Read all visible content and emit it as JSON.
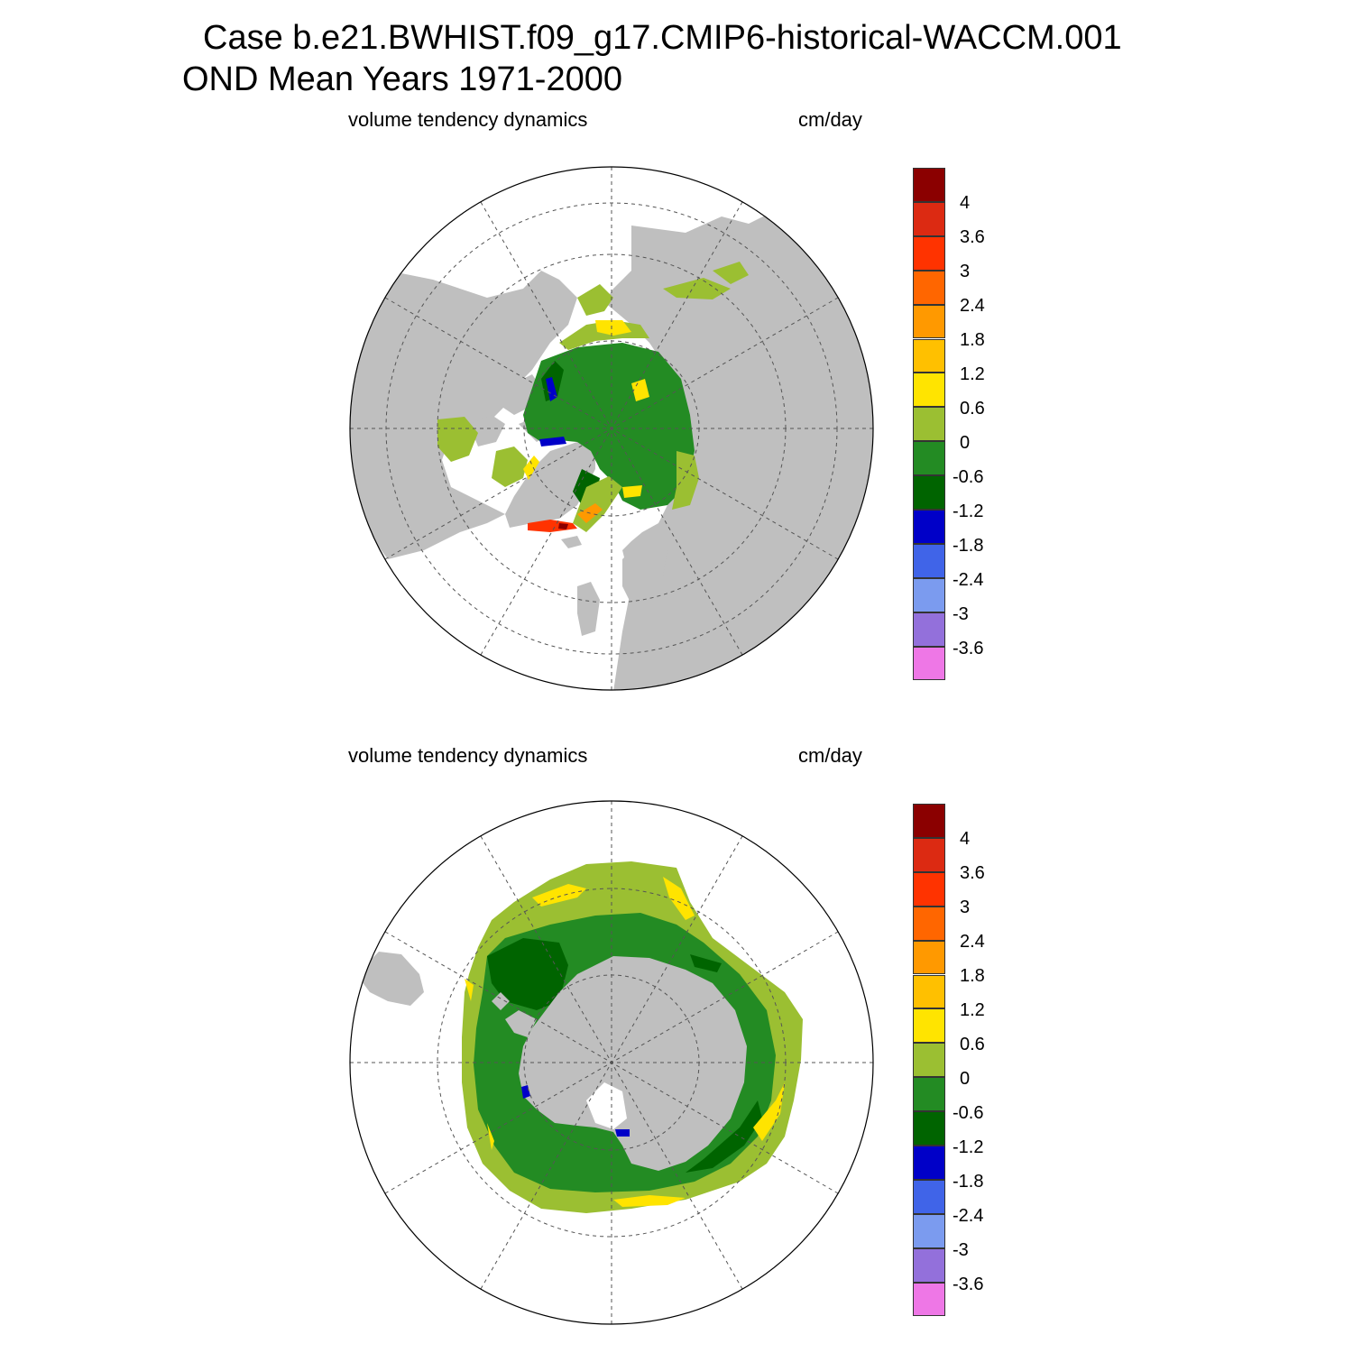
{
  "header": {
    "line1": "Case b.e21.BWHIST.f09_g17.CMIP6-historical-WACCM.001",
    "line2": "OND Mean   Years 1971-2000"
  },
  "panels": [
    {
      "hemisphere": "north",
      "left_label": "volume tendency dynamics",
      "right_label": "cm/day"
    },
    {
      "hemisphere": "south",
      "left_label": "volume tendency dynamics",
      "right_label": "cm/day"
    }
  ],
  "colorbar": {
    "labels": [
      "4",
      "3.6",
      "3",
      "2.4",
      "1.8",
      "1.2",
      "0.6",
      "0",
      "-0.6",
      "-1.2",
      "-1.8",
      "-2.4",
      "-3",
      "-3.6"
    ],
    "colors": [
      "#8b0000",
      "#dc2a12",
      "#ff3300",
      "#ff6600",
      "#ff9900",
      "#ffc000",
      "#ffe400",
      "#9bbf32",
      "#238b23",
      "#006400",
      "#0000c8",
      "#4064e8",
      "#7b9bef",
      "#9370db",
      "#ee77e6"
    ]
  },
  "colors": {
    "land": "#bfbfbf",
    "ocean": "#ffffff",
    "grid": "#555555"
  }
}
